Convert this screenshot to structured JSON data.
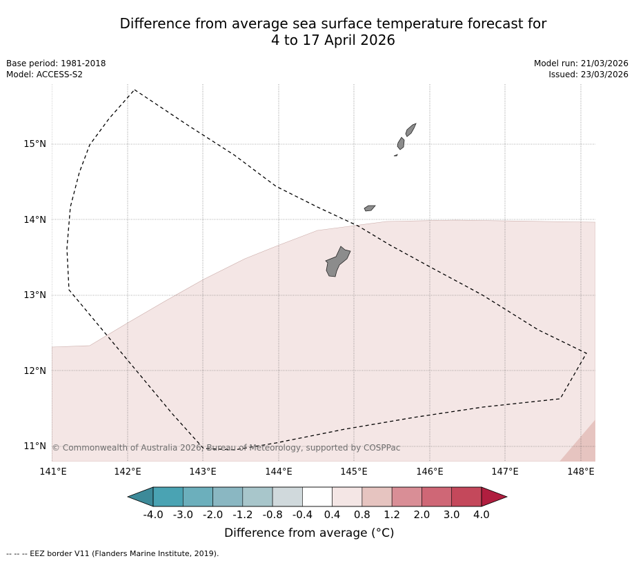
{
  "title": {
    "line1": "Difference from average sea surface temperature forecast for",
    "line2": "4 to 17 April 2026"
  },
  "meta": {
    "base_period": "Base period: 1981-2018",
    "model": "Model: ACCESS-S2",
    "model_run": "Model run: 21/03/2026",
    "issued": "Issued: 23/03/2026"
  },
  "map": {
    "lon_labels": [
      "141°E",
      "142°E",
      "143°E",
      "144°E",
      "145°E",
      "146°E",
      "147°E",
      "148°E"
    ],
    "lat_labels": [
      "15°N",
      "14°N",
      "13°N",
      "12°N",
      "11°N"
    ],
    "copyright": "© Commonwealth of Australia 2026, Bureau of Meteorology, supported by COSPPac",
    "colors": {
      "anomaly_light": "#f4e6e5",
      "anomaly_medium": "#e6c4c0",
      "land": "#8c8c8c"
    }
  },
  "colorbar": {
    "title": "Difference from average (°C)",
    "labels": [
      "-4.0",
      "-3.0",
      "-2.0",
      "-1.2",
      "-0.8",
      "-0.4",
      "0.4",
      "0.8",
      "1.2",
      "2.0",
      "3.0",
      "4.0"
    ],
    "colors": [
      "#4aa3b3",
      "#6cafbc",
      "#8ab7c2",
      "#a8c6cb",
      "#d0d9dc",
      "#ffffff",
      "#f4e6e5",
      "#e6c4c0",
      "#d98e96",
      "#cf6776",
      "#c4485b"
    ],
    "under_color": "#3d8a99",
    "over_color": "#b01e3f"
  },
  "footer": "--  --  -- EEZ border V11 (Flanders Marine Institute, 2019)."
}
